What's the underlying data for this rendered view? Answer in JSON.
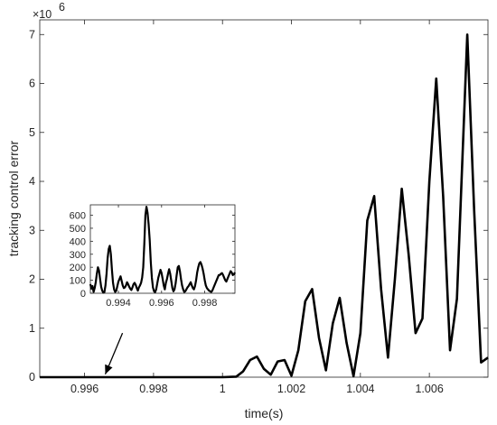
{
  "chart_data": [
    {
      "type": "line",
      "xlabel": "time(s)",
      "ylabel": "tracking control error",
      "y_multiplier_base": "×10",
      "y_multiplier_exp": "6",
      "xlim": [
        0.9947,
        1.0077
      ],
      "ylim": [
        0,
        7.3
      ],
      "x_ticks": [
        0.996,
        0.998,
        1,
        1.002,
        1.004,
        1.006
      ],
      "x_tick_labels": [
        "0.996",
        "0.998",
        "1",
        "1.002",
        "1.004",
        "1.006"
      ],
      "y_ticks": [
        0,
        1,
        2,
        3,
        4,
        5,
        6,
        7
      ],
      "y_tick_labels": [
        "0",
        "1",
        "2",
        "3",
        "4",
        "5",
        "6",
        "7"
      ],
      "grid": false,
      "series": [
        {
          "color": "#000000",
          "x": [
            0.9947,
            0.999,
            1.0,
            1.0004,
            1.0006,
            1.0008,
            1.001,
            1.0012,
            1.0014,
            1.0016,
            1.0018,
            1.002,
            1.0022,
            1.0024,
            1.0026,
            1.0028,
            1.003,
            1.0032,
            1.0034,
            1.0036,
            1.0038,
            1.004,
            1.0042,
            1.0044,
            1.0046,
            1.0048,
            1.005,
            1.0052,
            1.0054,
            1.0056,
            1.0058,
            1.006,
            1.0062,
            1.0064,
            1.0066,
            1.0068,
            1.0071,
            1.0073,
            1.0075,
            1.0077
          ],
          "y": [
            0,
            0,
            0,
            0.01,
            0.12,
            0.35,
            0.42,
            0.17,
            0.05,
            0.32,
            0.35,
            0.03,
            0.55,
            1.55,
            1.8,
            0.8,
            0.14,
            1.1,
            1.62,
            0.7,
            0.02,
            0.9,
            3.2,
            3.7,
            1.8,
            0.4,
            2.0,
            3.85,
            2.5,
            0.9,
            1.2,
            4.0,
            6.1,
            3.7,
            0.55,
            1.6,
            7.0,
            3.4,
            0.3,
            0.4
          ]
        }
      ],
      "annotation": {
        "type": "arrow",
        "from": [
          0.9971,
          0.9
        ],
        "to": [
          0.9966,
          0.06
        ]
      }
    },
    {
      "type": "line",
      "role": "inset",
      "xlim": [
        0.9927,
        0.9994
      ],
      "ylim": [
        0,
        680
      ],
      "x_ticks": [
        0.994,
        0.996,
        0.998
      ],
      "x_tick_labels": [
        "0.994",
        "0.996",
        "0.998"
      ],
      "y_ticks": [
        0,
        100,
        200,
        300,
        400,
        500,
        600
      ],
      "y_tick_labels": [
        "0",
        "100",
        "200",
        "300",
        "400",
        "500",
        "600"
      ],
      "series": [
        {
          "color": "#000000",
          "x": [
            0.9927,
            0.99275,
            0.9928,
            0.99285,
            0.9929,
            0.99295,
            0.993,
            0.99305,
            0.9931,
            0.99315,
            0.9932,
            0.99325,
            0.9933,
            0.99335,
            0.9934,
            0.99345,
            0.9935,
            0.99355,
            0.9936,
            0.99365,
            0.9937,
            0.99375,
            0.9938,
            0.99385,
            0.9939,
            0.99395,
            0.994,
            0.99405,
            0.9941,
            0.99415,
            0.9942,
            0.99425,
            0.9943,
            0.99435,
            0.9944,
            0.99445,
            0.9945,
            0.99455,
            0.9946,
            0.99465,
            0.9947,
            0.99475,
            0.9948,
            0.99485,
            0.9949,
            0.99495,
            0.995,
            0.99505,
            0.9951,
            0.99515,
            0.9952,
            0.99525,
            0.9953,
            0.99535,
            0.9954,
            0.99545,
            0.9955,
            0.99555,
            0.9956,
            0.99565,
            0.9957,
            0.99575,
            0.9958,
            0.99585,
            0.9959,
            0.99595,
            0.996,
            0.99605,
            0.9961,
            0.99615,
            0.9962,
            0.99625,
            0.9963,
            0.99635,
            0.9964,
            0.99645,
            0.9965,
            0.99655,
            0.9966,
            0.99665,
            0.9967,
            0.99675,
            0.9968,
            0.99685,
            0.9969,
            0.99695,
            0.997,
            0.99705,
            0.9971,
            0.99715,
            0.9972,
            0.99725,
            0.9973,
            0.99735,
            0.9974,
            0.99745,
            0.9975,
            0.99755,
            0.9976,
            0.99765,
            0.9977,
            0.99775,
            0.9978,
            0.99785,
            0.9979,
            0.99795,
            0.998,
            0.99805,
            0.9981,
            0.99815,
            0.9982,
            0.99825,
            0.9983,
            0.99835,
            0.9984,
            0.99845,
            0.9985,
            0.99855,
            0.9986,
            0.99865,
            0.9987,
            0.99875,
            0.9988,
            0.99885,
            0.9989,
            0.99895,
            0.999,
            0.99905,
            0.9991,
            0.99915,
            0.9992,
            0.99925,
            0.9993,
            0.99935,
            0.9994
          ],
          "y": [
            70,
            35,
            55,
            10,
            40,
            85,
            150,
            200,
            175,
            110,
            50,
            20,
            5,
            8,
            60,
            150,
            270,
            340,
            365,
            300,
            180,
            80,
            30,
            10,
            20,
            55,
            90,
            110,
            130,
            95,
            60,
            40,
            45,
            60,
            85,
            70,
            50,
            35,
            25,
            45,
            70,
            80,
            65,
            40,
            20,
            45,
            60,
            80,
            120,
            200,
            380,
            600,
            665,
            620,
            530,
            410,
            240,
            120,
            45,
            15,
            8,
            30,
            75,
            120,
            150,
            180,
            155,
            110,
            60,
            30,
            80,
            110,
            150,
            185,
            150,
            95,
            40,
            15,
            30,
            75,
            140,
            200,
            210,
            170,
            110,
            60,
            30,
            10,
            15,
            30,
            45,
            55,
            70,
            85,
            60,
            40,
            30,
            55,
            100,
            160,
            200,
            230,
            240,
            220,
            190,
            150,
            100,
            60,
            40,
            30,
            20,
            15,
            10,
            20,
            40,
            60,
            80,
            100,
            120,
            140,
            140,
            150,
            155,
            140,
            120,
            100,
            90,
            110,
            130,
            150,
            170,
            160,
            140,
            145,
            160
          ]
        }
      ]
    }
  ]
}
